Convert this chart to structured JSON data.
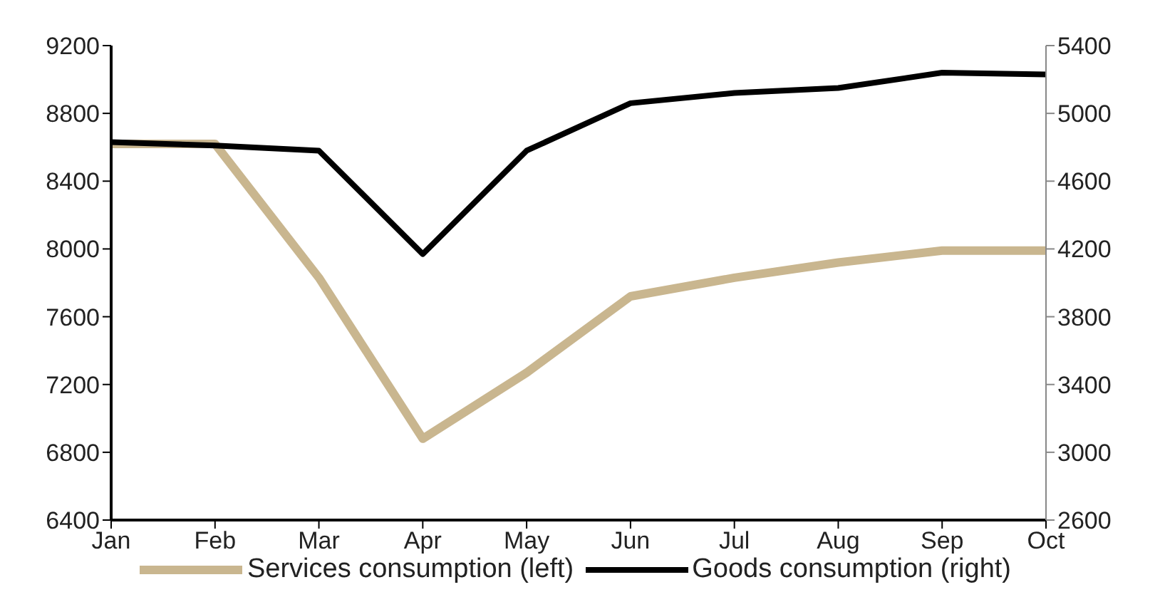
{
  "chart_data": {
    "type": "line",
    "categories": [
      "Jan",
      "Feb",
      "Mar",
      "Apr",
      "May",
      "Jun",
      "Jul",
      "Aug",
      "Sep",
      "Oct"
    ],
    "series": [
      {
        "name": "Services consumption (left)",
        "color": "#c9b68f",
        "values": [
          8620,
          8620,
          7830,
          6880,
          7270,
          7720,
          7830,
          7920,
          7990,
          7990
        ]
      },
      {
        "name": "Goods consumption (right)",
        "color": "#000000",
        "axis": "y2",
        "values": [
          4830,
          4810,
          4780,
          4170,
          4780,
          5060,
          5120,
          5150,
          5240,
          5230
        ]
      }
    ],
    "ylim": [
      6400,
      9200
    ],
    "yticks": [
      6400,
      6800,
      7200,
      7600,
      8000,
      8400,
      8800,
      9200
    ],
    "y2lim": [
      2600,
      5400
    ],
    "y2ticks": [
      2600,
      3000,
      3400,
      3800,
      4200,
      4600,
      5000,
      5400
    ],
    "grid": false,
    "legend": "bottom",
    "marker": "none",
    "line_style": "solid"
  }
}
